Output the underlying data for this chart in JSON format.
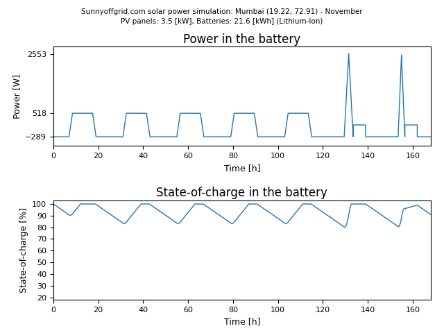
{
  "title_top": "Sunnyoffgrid.com solar power simulation: Mumbai (19.22, 72.91) - November",
  "title_top2": "PV panels: 3.5 [kW], Batteries: 21.6 [kWh] (Lithium-Ion)",
  "title1": "Power in the battery",
  "title2": "State-of-charge in the battery",
  "xlabel": "Time [h]",
  "ylabel1": "Power [W]",
  "ylabel2": "State-of-charge [%]",
  "line_color": "#1f77b4",
  "xlim": [
    0,
    168
  ],
  "power_yticks": [
    -289,
    518,
    2553
  ],
  "soc_yticks": [
    20,
    30,
    40,
    50,
    60,
    70,
    80,
    90,
    100
  ],
  "xticks": [
    0,
    20,
    40,
    60,
    80,
    100,
    120,
    140,
    160
  ],
  "night_power": -289,
  "day_power": 518,
  "peak_power1": 2553,
  "peak_power2": 2510,
  "capacity_wh": 21600
}
